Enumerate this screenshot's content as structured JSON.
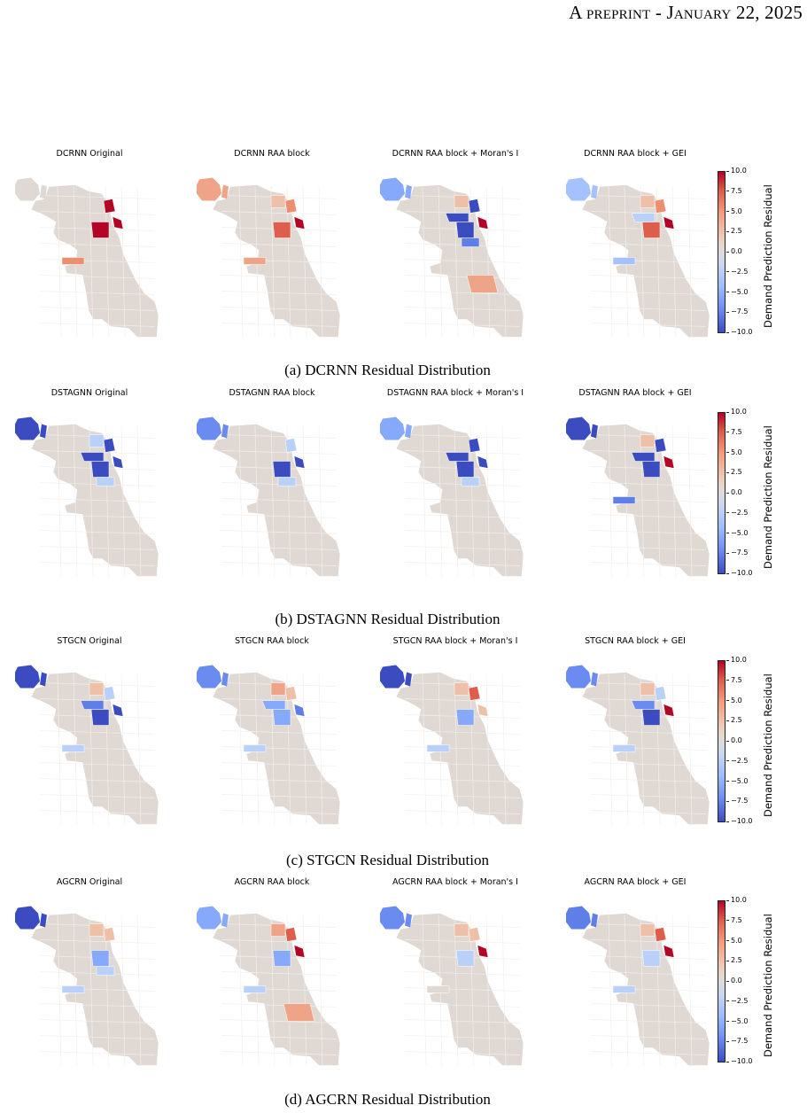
{
  "header": {
    "prefix": "A ",
    "word1": "preprint",
    "dash": " - ",
    "word2": "January",
    "rest": " 22, 2025"
  },
  "colorbar": {
    "label": "Demand Prediction Residual",
    "ticks": [
      "10.0",
      "7.5",
      "5.0",
      "2.5",
      "0.0",
      "−2.5",
      "−5.0",
      "−7.5",
      "−10.0"
    ]
  },
  "sections": [
    {
      "caption": "(a) DCRNN Residual Distribution",
      "titles": [
        "DCRNN Original",
        "DCRNN RAA block",
        "DCRNN RAA block + Moran's I",
        "DCRNN RAA block + GEI"
      ]
    },
    {
      "caption": "(b) DSTAGNN Residual Distribution",
      "titles": [
        "DSTAGNN Original",
        "DSTAGNN RAA block",
        "DSTAGNN RAA block + Moran's I",
        "DSTAGNN RAA block + GEI"
      ]
    },
    {
      "caption": "(c) STGCN Residual Distribution",
      "titles": [
        "STGCN Original",
        "STGCN RAA block",
        "STGCN RAA block + Moran's I",
        "STGCN RAA block + GEI"
      ]
    },
    {
      "caption": "(d) AGCRN Residual Distribution",
      "titles": [
        "AGCRN Original",
        "AGCRN RAA block",
        "AGCRN RAA block + Moran's I",
        "AGCRN RAA block + GEI"
      ]
    }
  ],
  "colors": {
    "base": "#e0d8d3",
    "dark_red": "#b40426",
    "red": "#dd5f4b",
    "salmon": "#f0a487",
    "light_salmon": "#eec0a8",
    "light_blue": "#b9d0f9",
    "blue": "#86a9fc",
    "mid_blue": "#5f7fe8",
    "dark_blue": "#3b4cc0"
  },
  "maps": [
    {
      "ohare": "#e0d8d3",
      "west": "#e0d8d3",
      "r": [
        [
          "n1",
          "#b40426"
        ],
        [
          "lake",
          "#b40426"
        ],
        [
          "center",
          "#b40426"
        ],
        [
          "sw",
          "#eb8f6e"
        ]
      ]
    },
    {
      "ohare": "#f0a487",
      "west": "#f0a487",
      "r": [
        [
          "n1",
          "#eb8f6e"
        ],
        [
          "lake",
          "#b40426"
        ],
        [
          "center",
          "#dd5f4b"
        ],
        [
          "sw",
          "#f0a487"
        ],
        [
          "north",
          "#eec0a8"
        ]
      ]
    },
    {
      "ohare": "#86a9fc",
      "west": "#86a9fc",
      "r": [
        [
          "n1",
          "#3b4cc0"
        ],
        [
          "lake",
          "#b40426"
        ],
        [
          "center",
          "#3b4cc0"
        ],
        [
          "west2",
          "#3b4cc0"
        ],
        [
          "c2",
          "#5f7fe8"
        ],
        [
          "south",
          "#f0a487"
        ],
        [
          "north",
          "#eec0a8"
        ]
      ]
    },
    {
      "ohare": "#a5c2fe",
      "west": "#a5c2fe",
      "r": [
        [
          "n1",
          "#eb8f6e"
        ],
        [
          "lake",
          "#b40426"
        ],
        [
          "center",
          "#dd5f4b"
        ],
        [
          "sw",
          "#a5c2fe"
        ],
        [
          "west2",
          "#b9d0f9"
        ],
        [
          "north",
          "#eec0a8"
        ]
      ]
    },
    {
      "ohare": "#3b4cc0",
      "west": "#3b4cc0",
      "r": [
        [
          "n1",
          "#3b4cc0"
        ],
        [
          "lake",
          "#3b4cc0"
        ],
        [
          "center",
          "#3b4cc0"
        ],
        [
          "west2",
          "#3b4cc0"
        ],
        [
          "north",
          "#b9d0f9"
        ],
        [
          "c2",
          "#b9d0f9"
        ]
      ]
    },
    {
      "ohare": "#6a8bef",
      "west": "#6a8bef",
      "r": [
        [
          "n1",
          "#b9d0f9"
        ],
        [
          "lake",
          "#3b4cc0"
        ],
        [
          "center",
          "#3b4cc0"
        ],
        [
          "c2",
          "#b9d0f9"
        ]
      ]
    },
    {
      "ohare": "#86a9fc",
      "west": "#86a9fc",
      "r": [
        [
          "n1",
          "#3b4cc0"
        ],
        [
          "lake",
          "#3b4cc0"
        ],
        [
          "center",
          "#3b4cc0"
        ],
        [
          "west2",
          "#3b4cc0"
        ],
        [
          "c2",
          "#b9d0f9"
        ]
      ]
    },
    {
      "ohare": "#3b4cc0",
      "west": "#3b4cc0",
      "r": [
        [
          "n1",
          "#3b4cc0"
        ],
        [
          "lake",
          "#b40426"
        ],
        [
          "center",
          "#3b4cc0"
        ],
        [
          "west2",
          "#3b4cc0"
        ],
        [
          "sw",
          "#5f7fe8"
        ],
        [
          "north",
          "#eec0a8"
        ]
      ]
    },
    {
      "ohare": "#3b4cc0",
      "west": "#3b4cc0",
      "r": [
        [
          "n1",
          "#b9d0f9"
        ],
        [
          "lake",
          "#3b4cc0"
        ],
        [
          "center",
          "#3b4cc0"
        ],
        [
          "west2",
          "#5f7fe8"
        ],
        [
          "sw",
          "#b9d0f9"
        ],
        [
          "north",
          "#eec0a8"
        ]
      ]
    },
    {
      "ohare": "#6a8bef",
      "west": "#6a8bef",
      "r": [
        [
          "n1",
          "#eec0a8"
        ],
        [
          "lake",
          "#5f7fe8"
        ],
        [
          "center",
          "#86a9fc"
        ],
        [
          "west2",
          "#86a9fc"
        ],
        [
          "sw",
          "#b9d0f9"
        ],
        [
          "north",
          "#f0a487"
        ]
      ]
    },
    {
      "ohare": "#3b4cc0",
      "west": "#3b4cc0",
      "r": [
        [
          "n1",
          "#dd5f4b"
        ],
        [
          "lake",
          "#eec0a8"
        ],
        [
          "center",
          "#86a9fc"
        ],
        [
          "sw",
          "#b9d0f9"
        ],
        [
          "north",
          "#eec0a8"
        ]
      ]
    },
    {
      "ohare": "#6a8bef",
      "west": "#6a8bef",
      "r": [
        [
          "n1",
          "#b9d0f9"
        ],
        [
          "lake",
          "#b40426"
        ],
        [
          "center",
          "#3b4cc0"
        ],
        [
          "west2",
          "#6a8bef"
        ],
        [
          "sw",
          "#b9d0f9"
        ],
        [
          "north",
          "#eec0a8"
        ]
      ]
    },
    {
      "ohare": "#3b4cc0",
      "west": "#3b4cc0",
      "r": [
        [
          "n1",
          "#eec0a8"
        ],
        [
          "center",
          "#86a9fc"
        ],
        [
          "c2",
          "#b9d0f9"
        ],
        [
          "sw",
          "#b9d0f9"
        ],
        [
          "north",
          "#eec0a8"
        ]
      ]
    },
    {
      "ohare": "#86a9fc",
      "west": "#86a9fc",
      "r": [
        [
          "n1",
          "#dd5f4b"
        ],
        [
          "lake",
          "#b40426"
        ],
        [
          "center",
          "#86a9fc"
        ],
        [
          "sw",
          "#b9d0f9"
        ],
        [
          "north",
          "#f0a487"
        ],
        [
          "south",
          "#f0a487"
        ]
      ]
    },
    {
      "ohare": "#6a8bef",
      "west": "#6a8bef",
      "r": [
        [
          "n1",
          "#eec0a8"
        ],
        [
          "lake",
          "#b40426"
        ],
        [
          "center",
          "#b9d0f9"
        ],
        [
          "sw",
          "#e0d8d3"
        ],
        [
          "north",
          "#eec0a8"
        ]
      ]
    },
    {
      "ohare": "#5f7fe8",
      "west": "#5f7fe8",
      "r": [
        [
          "n1",
          "#dd5f4b"
        ],
        [
          "lake",
          "#b40426"
        ],
        [
          "center",
          "#b9d0f9"
        ],
        [
          "sw",
          "#b9d0f9"
        ],
        [
          "north",
          "#eec0a8"
        ]
      ]
    }
  ]
}
